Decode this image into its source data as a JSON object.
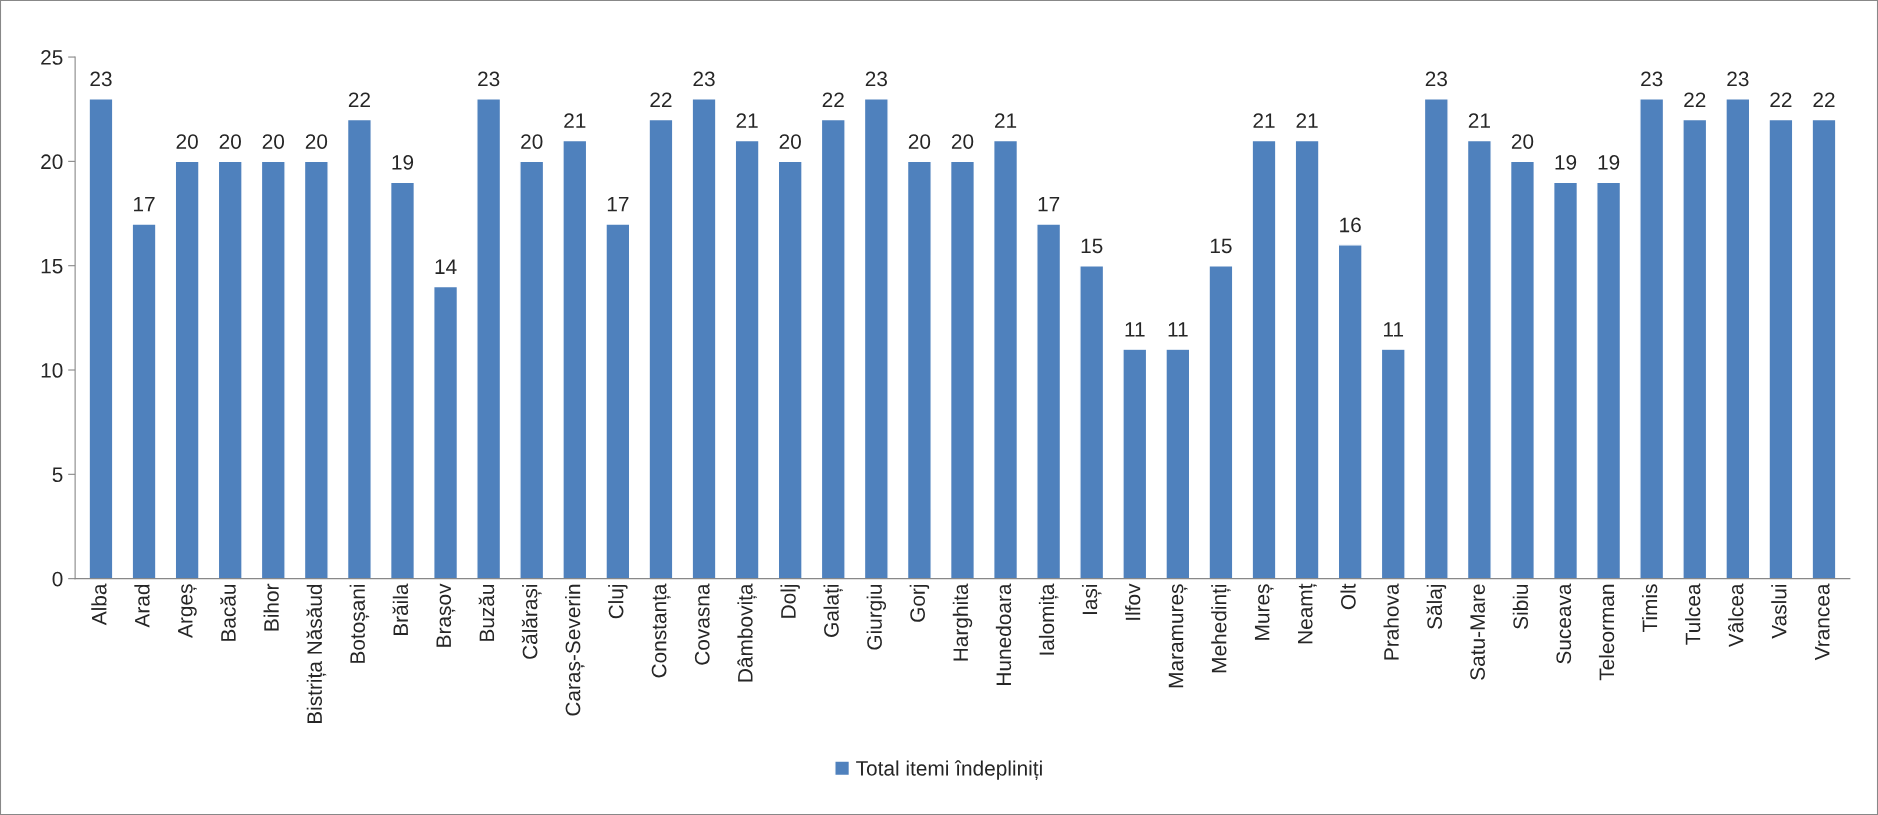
{
  "chart_data": {
    "type": "bar",
    "categories": [
      "Alba",
      "Arad",
      "Argeș",
      "Bacău",
      "Bihor",
      "Bistrița Năsăud",
      "Botoșani",
      "Brăila",
      "Brașov",
      "Buzău",
      "Călărași",
      "Caraș-Severin",
      "Cluj",
      "Constanța",
      "Covasna",
      "Dâmbovița",
      "Dolj",
      "Galați",
      "Giurgiu",
      "Gorj",
      "Harghita",
      "Hunedoara",
      "Ialomița",
      "Iași",
      "Ilfov",
      "Maramureș",
      "Mehedinți",
      "Mureș",
      "Neamț",
      "Olt",
      "Prahova",
      "Sălaj",
      "Satu-Mare",
      "Sibiu",
      "Suceava",
      "Teleorman",
      "Timis",
      "Tulcea",
      "Vâlcea",
      "Vaslui",
      "Vrancea"
    ],
    "series": [
      {
        "name": "Total itemi îndepliniți",
        "color": "#4f81bd",
        "values": [
          23,
          17,
          20,
          20,
          20,
          20,
          22,
          19,
          14,
          23,
          20,
          21,
          17,
          22,
          23,
          21,
          20,
          22,
          23,
          20,
          20,
          21,
          17,
          15,
          11,
          11,
          15,
          21,
          21,
          16,
          11,
          23,
          21,
          20,
          19,
          19,
          23,
          22,
          23,
          22,
          22
        ]
      }
    ],
    "ylim": [
      0,
      25
    ],
    "yticks": [
      0,
      5,
      10,
      15,
      20,
      25
    ],
    "data_labels": true,
    "grid": false,
    "legend": "bottom"
  }
}
